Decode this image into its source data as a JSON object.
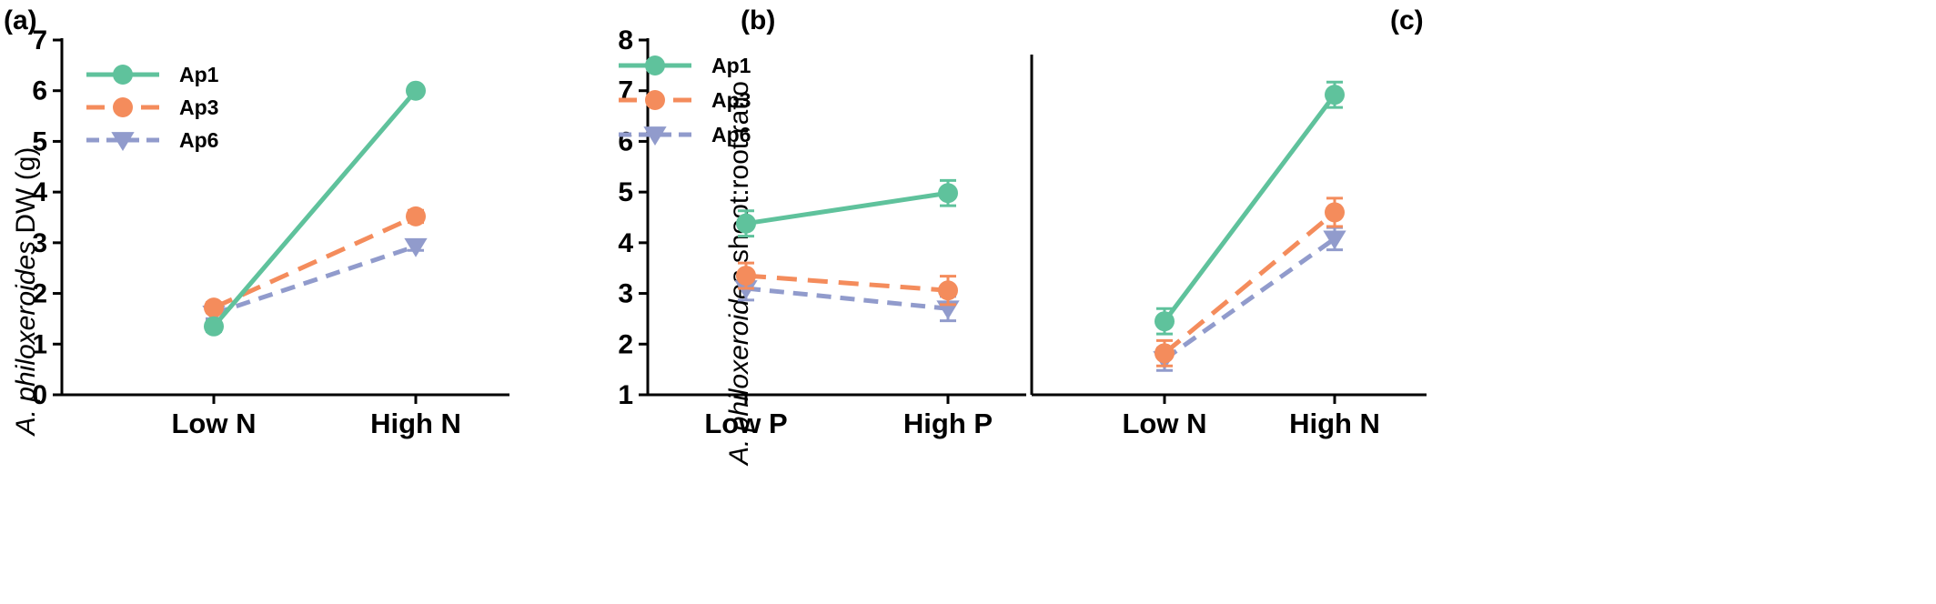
{
  "colors": {
    "Ap1": "#5fc29c",
    "Ap3": "#f48c5c",
    "Ap6": "#919bcc"
  },
  "chart_data": [
    {
      "type": "line",
      "panel_label": "(a)",
      "ylabel_italic": "A. philoxeroides",
      "ylabel_rest": " DW (g)",
      "categories": [
        "Low N",
        "High N"
      ],
      "ylim": [
        0,
        7
      ],
      "yticks": [
        "0",
        "1",
        "2",
        "3",
        "4",
        "5",
        "6",
        "7"
      ],
      "legend": "top-left",
      "series": [
        {
          "name": "Ap1",
          "values": [
            1.35,
            6.0
          ],
          "errors": [
            0.1,
            0.05
          ]
        },
        {
          "name": "Ap3",
          "values": [
            1.72,
            3.52
          ],
          "errors": [
            0.1,
            0.12
          ]
        },
        {
          "name": "Ap6",
          "values": [
            1.6,
            2.93
          ],
          "errors": [
            0.1,
            0.08
          ]
        }
      ]
    },
    {
      "type": "line",
      "panel_label": "(b)",
      "ylabel_italic": "A. philoxeroides",
      "ylabel_rest": " shoot:root ratio",
      "categories": [
        "Low P",
        "High P"
      ],
      "ylim": [
        1,
        8
      ],
      "yticks": [
        "1",
        "2",
        "3",
        "4",
        "5",
        "6",
        "7",
        "8"
      ],
      "legend": "top-left",
      "series": [
        {
          "name": "Ap1",
          "values": [
            4.38,
            4.98
          ],
          "errors": [
            0.25,
            0.25
          ]
        },
        {
          "name": "Ap3",
          "values": [
            3.35,
            3.06
          ],
          "errors": [
            0.25,
            0.28
          ]
        },
        {
          "name": "Ap6",
          "values": [
            3.1,
            2.7
          ],
          "errors": [
            0.23,
            0.24
          ]
        }
      ]
    },
    {
      "type": "line",
      "panel_label": "(c)",
      "categories": [
        "Low N",
        "High N"
      ],
      "ylim": [
        1,
        8
      ],
      "series": [
        {
          "name": "Ap1",
          "values": [
            2.45,
            6.92
          ],
          "errors": [
            0.25,
            0.25
          ]
        },
        {
          "name": "Ap3",
          "values": [
            1.82,
            4.6
          ],
          "errors": [
            0.25,
            0.28
          ]
        },
        {
          "name": "Ap6",
          "values": [
            1.7,
            4.08
          ],
          "errors": [
            0.22,
            0.22
          ]
        }
      ]
    }
  ]
}
